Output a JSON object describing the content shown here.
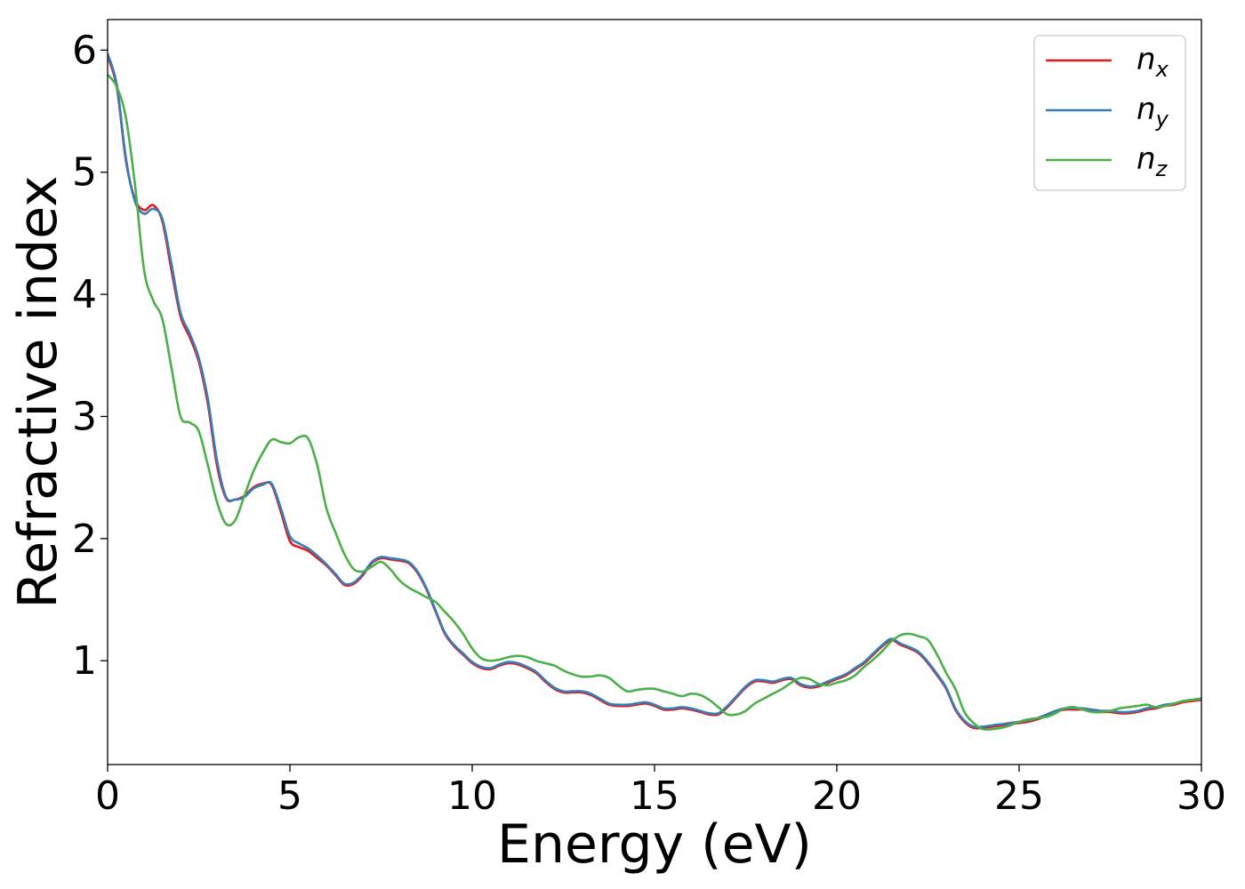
{
  "chart_data": {
    "type": "line",
    "title": "",
    "xlabel": "Energy (eV)",
    "ylabel": "Refractive index",
    "xlim": [
      0,
      30
    ],
    "ylim": [
      0.15,
      6.25
    ],
    "xticks": [
      0,
      5,
      10,
      15,
      20,
      25,
      30
    ],
    "yticks": [
      1,
      2,
      3,
      4,
      5,
      6
    ],
    "grid": false,
    "legend_position": "top-right",
    "x": [
      0,
      0.25,
      0.5,
      0.75,
      1.0,
      1.25,
      1.5,
      1.75,
      2.0,
      2.25,
      2.5,
      2.75,
      3.0,
      3.25,
      3.5,
      3.75,
      4.0,
      4.25,
      4.5,
      4.75,
      5.0,
      5.25,
      5.5,
      5.75,
      6.0,
      6.25,
      6.5,
      6.75,
      7.0,
      7.25,
      7.5,
      7.75,
      8.0,
      8.25,
      8.5,
      8.75,
      9.0,
      9.25,
      9.5,
      9.75,
      10.0,
      10.25,
      10.5,
      10.75,
      11.0,
      11.25,
      11.5,
      11.75,
      12.0,
      12.25,
      12.5,
      12.75,
      13.0,
      13.25,
      13.5,
      13.75,
      14.0,
      14.25,
      14.5,
      14.75,
      15.0,
      15.25,
      15.5,
      15.75,
      16.0,
      16.25,
      16.5,
      16.75,
      17.0,
      17.25,
      17.5,
      17.75,
      18.0,
      18.25,
      18.5,
      18.75,
      19.0,
      19.25,
      19.5,
      19.75,
      20.0,
      20.25,
      20.5,
      20.75,
      21.0,
      21.25,
      21.5,
      21.75,
      22.0,
      22.25,
      22.5,
      22.75,
      23.0,
      23.25,
      23.5,
      23.75,
      24.0,
      24.25,
      24.5,
      24.75,
      25.0,
      25.25,
      25.5,
      25.75,
      26.0,
      26.25,
      26.5,
      26.75,
      27.0,
      27.25,
      27.5,
      27.75,
      28.0,
      28.25,
      28.5,
      28.75,
      29.0,
      29.25,
      29.5,
      29.75,
      30.0
    ],
    "series": [
      {
        "name": "n_x",
        "label_base": "n",
        "label_sub": "x",
        "color": "#e41a1c",
        "values": [
          5.95,
          5.7,
          5.1,
          4.78,
          4.69,
          4.73,
          4.6,
          4.2,
          3.82,
          3.65,
          3.45,
          3.1,
          2.6,
          2.33,
          2.32,
          2.35,
          2.42,
          2.45,
          2.44,
          2.22,
          1.98,
          1.93,
          1.9,
          1.84,
          1.78,
          1.7,
          1.62,
          1.63,
          1.7,
          1.8,
          1.84,
          1.83,
          1.82,
          1.8,
          1.72,
          1.58,
          1.4,
          1.22,
          1.12,
          1.05,
          0.98,
          0.94,
          0.93,
          0.96,
          0.98,
          0.97,
          0.94,
          0.9,
          0.83,
          0.77,
          0.74,
          0.74,
          0.74,
          0.72,
          0.68,
          0.64,
          0.63,
          0.63,
          0.64,
          0.65,
          0.63,
          0.6,
          0.6,
          0.61,
          0.6,
          0.58,
          0.56,
          0.56,
          0.62,
          0.7,
          0.78,
          0.83,
          0.83,
          0.82,
          0.84,
          0.85,
          0.8,
          0.78,
          0.79,
          0.82,
          0.85,
          0.88,
          0.93,
          0.98,
          1.05,
          1.12,
          1.17,
          1.13,
          1.1,
          1.06,
          0.98,
          0.88,
          0.77,
          0.6,
          0.5,
          0.45,
          0.45,
          0.46,
          0.47,
          0.48,
          0.49,
          0.5,
          0.52,
          0.55,
          0.58,
          0.6,
          0.6,
          0.6,
          0.59,
          0.58,
          0.58,
          0.57,
          0.57,
          0.58,
          0.6,
          0.61,
          0.63,
          0.64,
          0.66,
          0.67,
          0.68
        ]
      },
      {
        "name": "n_y",
        "label_base": "n",
        "label_sub": "y",
        "color": "#377eb8",
        "values": [
          5.97,
          5.72,
          5.12,
          4.76,
          4.66,
          4.7,
          4.62,
          4.25,
          3.85,
          3.68,
          3.48,
          3.14,
          2.64,
          2.34,
          2.32,
          2.34,
          2.41,
          2.44,
          2.45,
          2.25,
          2.02,
          1.96,
          1.92,
          1.86,
          1.79,
          1.71,
          1.63,
          1.64,
          1.71,
          1.81,
          1.85,
          1.84,
          1.83,
          1.81,
          1.73,
          1.59,
          1.41,
          1.23,
          1.13,
          1.06,
          0.99,
          0.95,
          0.94,
          0.97,
          0.99,
          0.98,
          0.95,
          0.91,
          0.84,
          0.78,
          0.75,
          0.75,
          0.75,
          0.73,
          0.69,
          0.65,
          0.64,
          0.64,
          0.65,
          0.66,
          0.64,
          0.61,
          0.61,
          0.62,
          0.61,
          0.59,
          0.57,
          0.57,
          0.63,
          0.71,
          0.79,
          0.84,
          0.84,
          0.83,
          0.85,
          0.86,
          0.81,
          0.79,
          0.8,
          0.83,
          0.86,
          0.89,
          0.94,
          0.99,
          1.06,
          1.13,
          1.18,
          1.14,
          1.11,
          1.07,
          0.99,
          0.89,
          0.78,
          0.61,
          0.51,
          0.46,
          0.46,
          0.47,
          0.48,
          0.49,
          0.5,
          0.51,
          0.53,
          0.56,
          0.59,
          0.61,
          0.61,
          0.61,
          0.6,
          0.59,
          0.59,
          0.58,
          0.58,
          0.59,
          0.61,
          0.62,
          0.64,
          0.65,
          0.67,
          0.68,
          0.69
        ]
      },
      {
        "name": "n_z",
        "label_base": "n",
        "label_sub": "z",
        "color": "#4daf4a",
        "values": [
          5.8,
          5.7,
          5.45,
          4.9,
          4.2,
          3.95,
          3.8,
          3.4,
          3.0,
          2.95,
          2.88,
          2.6,
          2.3,
          2.12,
          2.15,
          2.35,
          2.55,
          2.7,
          2.81,
          2.79,
          2.78,
          2.83,
          2.82,
          2.6,
          2.25,
          2.05,
          1.87,
          1.75,
          1.73,
          1.77,
          1.81,
          1.75,
          1.66,
          1.6,
          1.56,
          1.52,
          1.48,
          1.4,
          1.32,
          1.22,
          1.1,
          1.02,
          1.0,
          1.01,
          1.03,
          1.04,
          1.03,
          1.0,
          0.98,
          0.96,
          0.92,
          0.89,
          0.87,
          0.87,
          0.88,
          0.86,
          0.8,
          0.75,
          0.76,
          0.77,
          0.77,
          0.75,
          0.73,
          0.71,
          0.73,
          0.72,
          0.68,
          0.62,
          0.56,
          0.56,
          0.59,
          0.65,
          0.69,
          0.73,
          0.77,
          0.82,
          0.86,
          0.85,
          0.81,
          0.8,
          0.82,
          0.84,
          0.88,
          0.95,
          1.01,
          1.08,
          1.16,
          1.21,
          1.22,
          1.2,
          1.17,
          1.05,
          0.9,
          0.77,
          0.58,
          0.49,
          0.44,
          0.44,
          0.45,
          0.47,
          0.5,
          0.52,
          0.53,
          0.54,
          0.57,
          0.61,
          0.62,
          0.6,
          0.58,
          0.58,
          0.59,
          0.61,
          0.62,
          0.63,
          0.64,
          0.62,
          0.63,
          0.65,
          0.67,
          0.68,
          0.69
        ]
      }
    ]
  }
}
